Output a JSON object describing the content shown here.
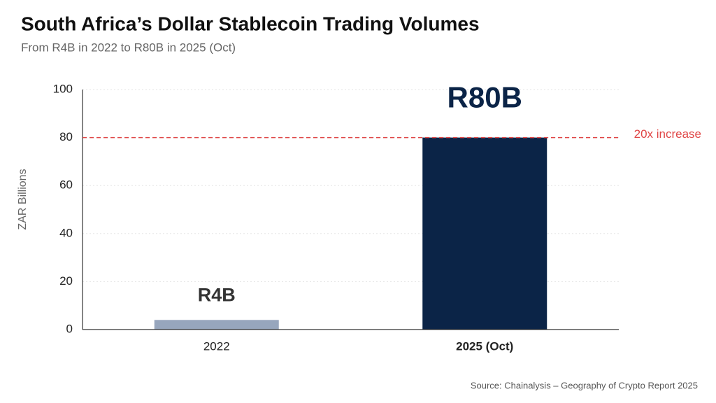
{
  "chart_data": {
    "type": "bar",
    "title": "South Africa’s Dollar Stablecoin Trading Volumes",
    "subtitle": "From R4B in 2022 to R80B in 2025 (Oct)",
    "y_label": "ZAR Billions",
    "categories": [
      "2022",
      "2025 (Oct)"
    ],
    "values": [
      4,
      80
    ],
    "value_labels": [
      "R4B",
      "R80B"
    ],
    "colors": [
      "#97a6bd",
      "#0b2447"
    ],
    "ylim": [
      0,
      100
    ],
    "yticks": [
      0,
      20,
      40,
      60,
      80,
      100
    ],
    "grid": true,
    "reference_line": {
      "value": 80,
      "label": "20x increase",
      "color": "#e04646"
    },
    "source": "Source: Chainalysis – Geography of Crypto Report 2025"
  }
}
